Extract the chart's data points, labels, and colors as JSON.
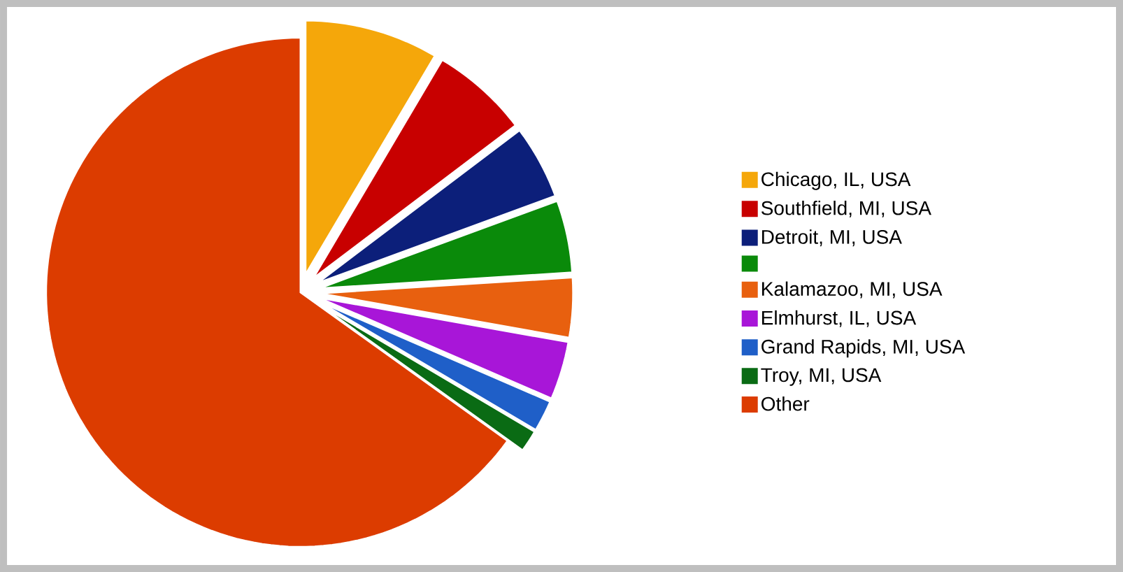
{
  "chart_data": {
    "type": "pie",
    "categories": [
      "Chicago, IL, USA",
      "Southfield, MI, USA",
      "Detroit, MI, USA",
      null,
      "Kalamazoo, MI, USA",
      "Elmhurst, IL, USA",
      "Grand Rapids, MI, USA",
      "Troy, MI, USA",
      "Other"
    ],
    "values": [
      8.5,
      6.2,
      4.7,
      4.6,
      3.8,
      3.7,
      2.0,
      1.4,
      65.1
    ],
    "colors": [
      "#f5a70a",
      "#c80000",
      "#0c1f7a",
      "#0a8a0a",
      "#e8600f",
      "#a816d8",
      "#1f5fc8",
      "#0a6b14",
      "#dc3c00"
    ],
    "legend": "right"
  }
}
